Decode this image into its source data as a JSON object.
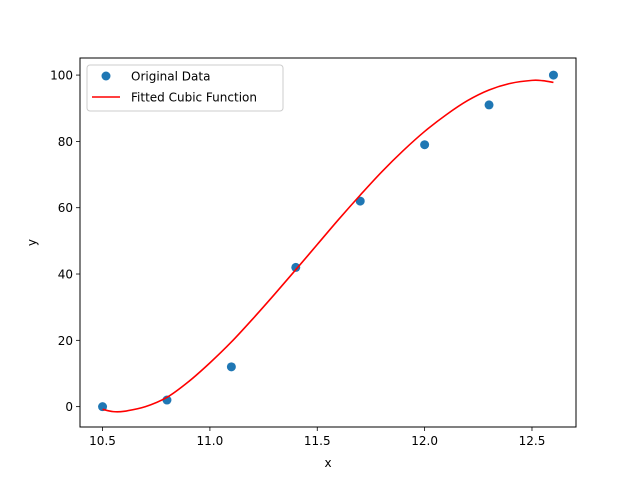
{
  "chart_data": {
    "type": "scatter",
    "title": "",
    "xlabel": "x",
    "ylabel": "y",
    "xlim": [
      10.395,
      12.705
    ],
    "ylim": [
      -6.14,
      105.15
    ],
    "xticks": [
      10.5,
      11.0,
      11.5,
      12.0,
      12.5
    ],
    "xtick_labels": [
      "10.5",
      "11.0",
      "11.5",
      "12.0",
      "12.5"
    ],
    "yticks": [
      0,
      20,
      40,
      60,
      80,
      100
    ],
    "ytick_labels": [
      "0",
      "20",
      "40",
      "60",
      "80",
      "100"
    ],
    "grid": false,
    "legend_placement": "upper-left",
    "series": [
      {
        "name": "Original Data",
        "kind": "scatter",
        "color": "#1f77b4",
        "x": [
          10.5,
          10.8,
          11.1,
          11.4,
          11.7,
          12.0,
          12.3,
          12.6
        ],
        "y": [
          0,
          2,
          12,
          42,
          62,
          79,
          91,
          100
        ]
      },
      {
        "name": "Fitted Cubic Function",
        "kind": "line",
        "color": "#ff0000",
        "x": [
          10.5,
          10.55,
          10.6,
          10.7,
          10.8,
          10.9,
          11.0,
          11.1,
          11.2,
          11.3,
          11.4,
          11.5,
          11.6,
          11.7,
          11.8,
          11.9,
          12.0,
          12.1,
          12.2,
          12.3,
          12.4,
          12.5,
          12.55,
          12.6
        ],
        "y": [
          -0.8,
          -1.5,
          -1.4,
          0.0,
          2.8,
          7.5,
          13.2,
          19.5,
          26.5,
          33.8,
          41.3,
          48.9,
          56.5,
          63.8,
          70.8,
          77.2,
          83.0,
          88.0,
          92.3,
          95.5,
          97.5,
          98.4,
          98.3,
          97.8
        ]
      }
    ]
  }
}
